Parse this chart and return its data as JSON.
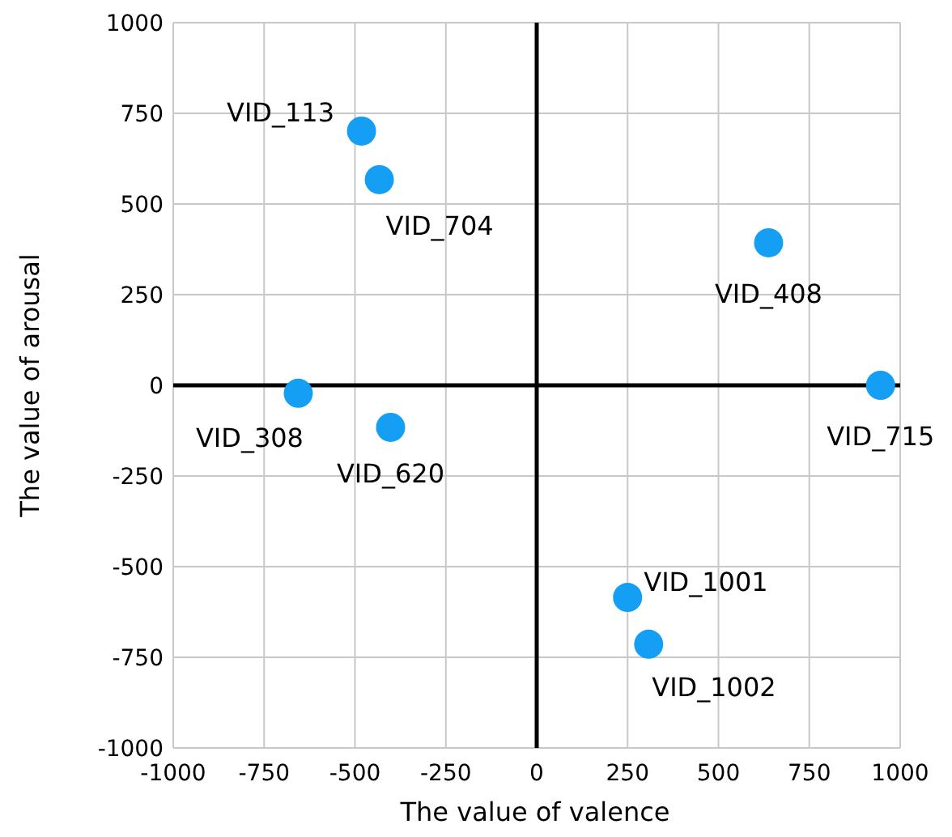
{
  "chart_data": {
    "type": "scatter",
    "xlabel": "The value of valence",
    "ylabel": "The value of arousal",
    "x": [
      -482,
      -433,
      638,
      -656,
      -402,
      946,
      250,
      308
    ],
    "series": [
      {
        "color": "#149ff5",
        "values": [
          701,
          567,
          393,
          -22,
          -116,
          0,
          -585,
          -714
        ]
      }
    ],
    "xlim": [
      -1000,
      1000
    ],
    "ylim": [
      -1000,
      1000
    ],
    "xticks": [
      -1000,
      -750,
      -500,
      -250,
      0,
      250,
      500,
      750,
      1000
    ],
    "yticks": [
      -1000,
      -750,
      -500,
      -250,
      0,
      250,
      500,
      750,
      1000
    ],
    "grid": true,
    "marker": "circle",
    "annotations": [
      {
        "text": "VID_113",
        "x": -482,
        "y": 701
      },
      {
        "text": "VID_704",
        "x": -433,
        "y": 567
      },
      {
        "text": "VID_408",
        "x": 638,
        "y": 393
      },
      {
        "text": "VID_308",
        "x": -656,
        "y": -22
      },
      {
        "text": "VID_620",
        "x": -402,
        "y": -116
      },
      {
        "text": "VID_715",
        "x": 946,
        "y": 0
      },
      {
        "text": "VID_1001",
        "x": 250,
        "y": -585
      },
      {
        "text": "VID_1002",
        "x": 308,
        "y": -714
      }
    ]
  }
}
